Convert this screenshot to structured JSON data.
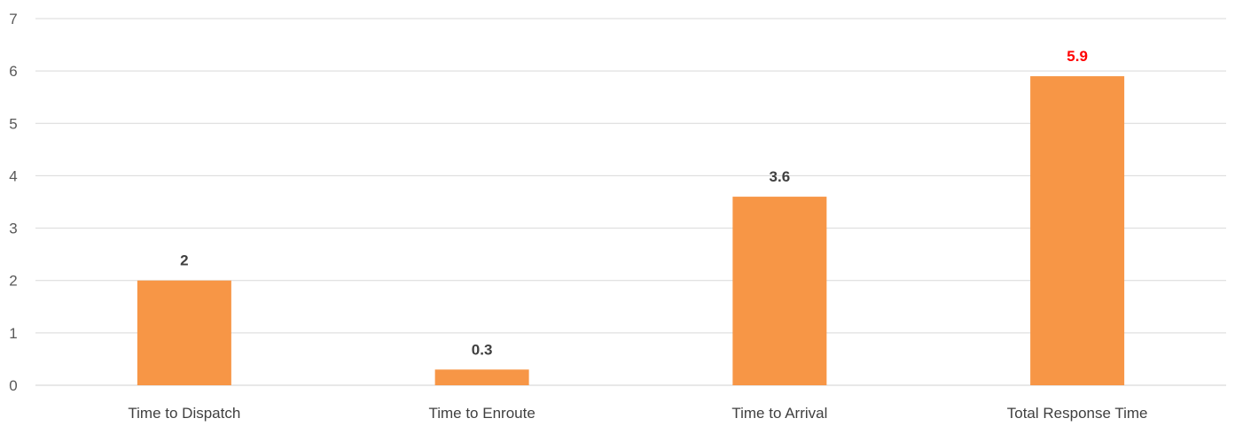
{
  "chart_data": {
    "type": "bar",
    "title": "",
    "xlabel": "",
    "ylabel": "",
    "categories": [
      "Time to Dispatch",
      "Time to Enroute",
      "Time to Arrival",
      "Total Response Time"
    ],
    "values": [
      2,
      0.3,
      3.6,
      5.9
    ],
    "data_labels": [
      "2",
      "0.3",
      "3.6",
      "5.9"
    ],
    "ylim": [
      0,
      7
    ],
    "yticks": [
      "0",
      "1",
      "2",
      "3",
      "4",
      "5",
      "6",
      "7"
    ],
    "grid": true,
    "legend": "none",
    "colors": {
      "bar": "#f79646",
      "data_label": "#404040",
      "data_label_highlight": "#ff0000",
      "grid": "#d9d9d9",
      "text": "#595959"
    },
    "highlight_index": 3
  }
}
